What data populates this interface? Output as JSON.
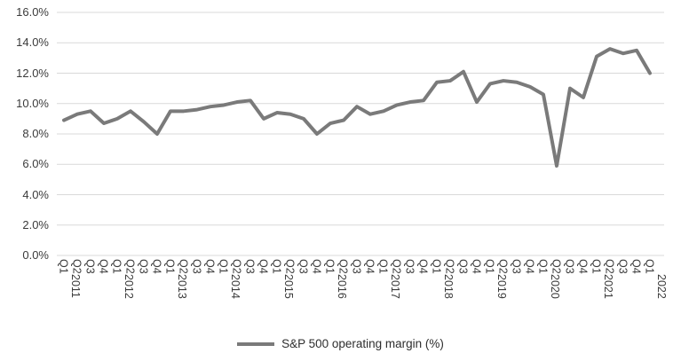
{
  "chart_data": {
    "type": "line",
    "title": "",
    "series_name": "S&P 500 operating margin (%)",
    "x_labels": [
      "Q1 2011",
      "Q2",
      "Q3",
      "Q4",
      "Q1 2012",
      "Q2",
      "Q3",
      "Q4",
      "Q1 2013",
      "Q2",
      "Q3",
      "Q4",
      "Q1 2014",
      "Q2",
      "Q3",
      "Q4",
      "Q1 2015",
      "Q2",
      "Q3",
      "Q4",
      "Q1 2016",
      "Q2",
      "Q3",
      "Q4",
      "Q1 2017",
      "Q2",
      "Q3",
      "Q4",
      "Q1 2018",
      "Q2",
      "Q3",
      "Q4",
      "Q1 2019",
      "Q2",
      "Q3",
      "Q4",
      "Q1 2020",
      "Q2",
      "Q3",
      "Q4",
      "Q1 2021",
      "Q2",
      "Q3",
      "Q4",
      "Q1 2022"
    ],
    "values": [
      8.9,
      9.3,
      9.5,
      8.7,
      9.0,
      9.5,
      8.8,
      8.0,
      9.5,
      9.5,
      9.6,
      9.8,
      9.9,
      10.1,
      10.2,
      9.0,
      9.4,
      9.3,
      9.0,
      8.0,
      8.7,
      8.9,
      9.8,
      9.3,
      9.5,
      9.9,
      10.1,
      10.2,
      11.4,
      11.5,
      12.1,
      10.1,
      11.3,
      11.5,
      11.4,
      11.1,
      10.6,
      5.9,
      11.0,
      10.4,
      13.1,
      13.6,
      13.3,
      13.5,
      12.0
    ],
    "y_tick_labels": [
      "0.0%",
      "2.0%",
      "4.0%",
      "6.0%",
      "8.0%",
      "10.0%",
      "12.0%",
      "14.0%",
      "16.0%"
    ],
    "y_tick_values": [
      0,
      2,
      4,
      6,
      8,
      10,
      12,
      14,
      16
    ],
    "ylim": [
      0,
      16
    ],
    "grid": "horizontal",
    "legend_position": "bottom",
    "line_color": "#7a7a7a",
    "gridline_color": "#d9d9d9",
    "text_color": "#3b3b3b"
  }
}
